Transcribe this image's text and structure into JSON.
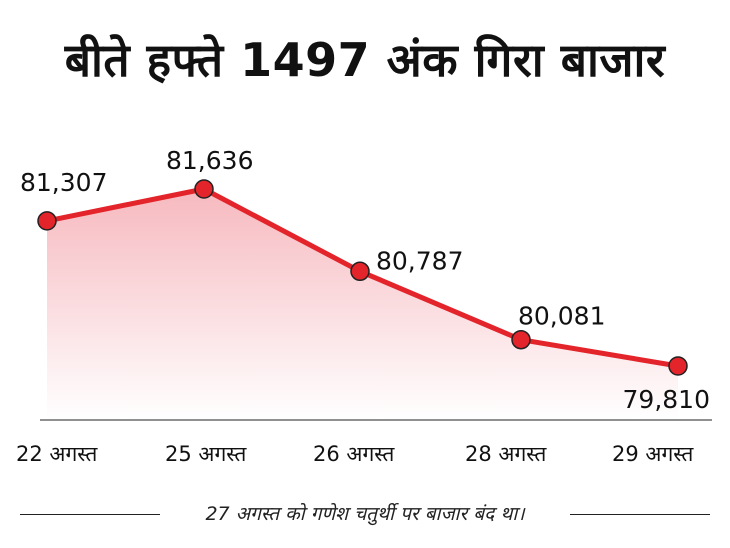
{
  "title": "बीते हफ्ते 1497 अंक गिरा बाजार",
  "footnote": "27 अगस्त को गणेश चतुर्थी पर बाजार बंद था।",
  "colors": {
    "line": "#e3242b",
    "fill_top": "#f6b9bf",
    "fill_bottom": "#ffffff",
    "text": "#111111"
  },
  "chart_data": {
    "type": "line",
    "categories": [
      "22 अगस्त",
      "25 अगस्त",
      "26 अगस्त",
      "28 अगस्त",
      "29 अगस्त"
    ],
    "series": [
      {
        "values": [
          81307,
          81636,
          80787,
          80081,
          79810
        ]
      }
    ],
    "data_labels": [
      "81,307",
      "81,636",
      "80,787",
      "80,081",
      "79,810"
    ],
    "title": "बीते हफ्ते 1497 अंक गिरा बाजार",
    "xlabel": "",
    "ylabel": "",
    "grid": false,
    "area_fill": true
  }
}
